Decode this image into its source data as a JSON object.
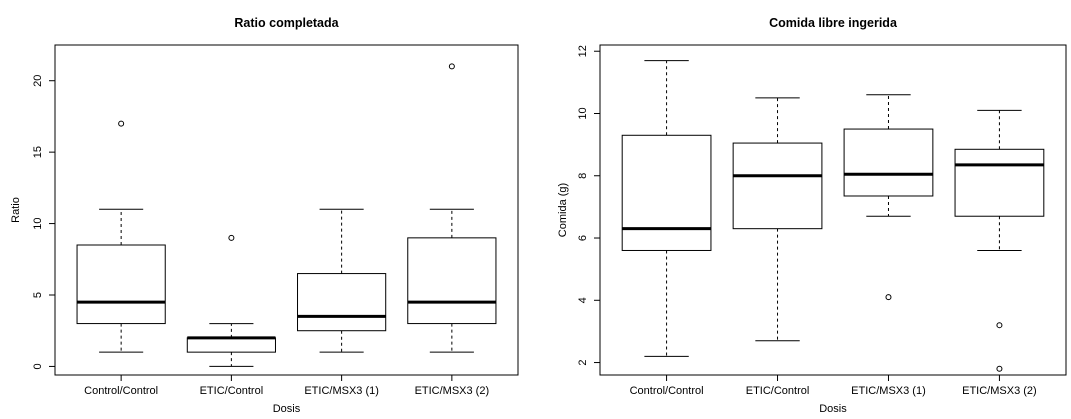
{
  "chart_data": [
    {
      "type": "box",
      "title": "Ratio completada",
      "xlabel": "Dosis",
      "ylabel": "Ratio",
      "ylim": [
        -0.6,
        22.5
      ],
      "yticks": [
        0,
        5,
        10,
        15,
        20
      ],
      "categories": [
        "Control/Control",
        "ETIC/Control",
        "ETIC/MSX3 (1)",
        "ETIC/MSX3 (2)"
      ],
      "boxes": [
        {
          "category": "Control/Control",
          "whisker_low": 1,
          "q1": 3,
          "median": 4.5,
          "q3": 8.5,
          "whisker_high": 11,
          "outliers": [
            17
          ]
        },
        {
          "category": "ETIC/Control",
          "whisker_low": 0,
          "q1": 1,
          "median": 2,
          "q3": 2,
          "whisker_high": 3,
          "outliers": [
            9
          ]
        },
        {
          "category": "ETIC/MSX3 (1)",
          "whisker_low": 1,
          "q1": 2.5,
          "median": 3.5,
          "q3": 6.5,
          "whisker_high": 11,
          "outliers": []
        },
        {
          "category": "ETIC/MSX3 (2)",
          "whisker_low": 1,
          "q1": 3,
          "median": 4.5,
          "q3": 9,
          "whisker_high": 11,
          "outliers": [
            21
          ]
        }
      ]
    },
    {
      "type": "box",
      "title": "Comida libre ingerida",
      "xlabel": "Dosis",
      "ylabel": "Comida (g)",
      "ylim": [
        1.6,
        12.2
      ],
      "yticks": [
        2,
        4,
        6,
        8,
        10,
        12
      ],
      "categories": [
        "Control/Control",
        "ETIC/Control",
        "ETIC/MSX3 (1)",
        "ETIC/MSX3 (2)"
      ],
      "boxes": [
        {
          "category": "Control/Control",
          "whisker_low": 2.2,
          "q1": 5.6,
          "median": 6.3,
          "q3": 9.3,
          "whisker_high": 11.7,
          "outliers": []
        },
        {
          "category": "ETIC/Control",
          "whisker_low": 2.7,
          "q1": 6.3,
          "median": 8.0,
          "q3": 9.05,
          "whisker_high": 10.5,
          "outliers": []
        },
        {
          "category": "ETIC/MSX3 (1)",
          "whisker_low": 6.7,
          "q1": 7.35,
          "median": 8.05,
          "q3": 9.5,
          "whisker_high": 10.6,
          "outliers": [
            4.1
          ]
        },
        {
          "category": "ETIC/MSX3 (2)",
          "whisker_low": 5.6,
          "q1": 6.7,
          "median": 8.35,
          "q3": 8.85,
          "whisker_high": 10.1,
          "outliers": [
            3.2,
            1.8
          ]
        }
      ]
    }
  ]
}
